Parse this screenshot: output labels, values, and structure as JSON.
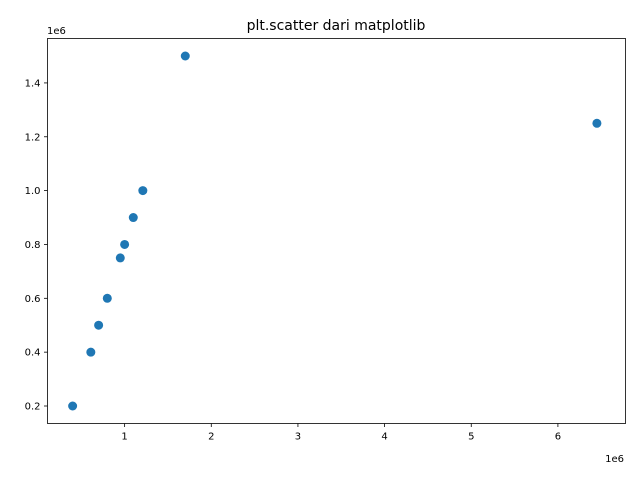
{
  "chart_data": {
    "type": "scatter",
    "title": "plt.scatter dari matplotlib",
    "xlabel": "",
    "ylabel": "",
    "x_offset_label": "1e6",
    "y_offset_label": "1e6",
    "xlim": [
      110000,
      6780000
    ],
    "ylim": [
      135000,
      1565000
    ],
    "x_ticks": [
      1000000,
      2000000,
      3000000,
      4000000,
      5000000,
      6000000
    ],
    "x_tick_labels": [
      "1",
      "2",
      "3",
      "4",
      "5",
      "6"
    ],
    "y_ticks": [
      200000,
      400000,
      600000,
      800000,
      1000000,
      1200000,
      1400000
    ],
    "y_tick_labels": [
      "0.2",
      "0.4",
      "0.6",
      "0.8",
      "1.0",
      "1.2",
      "1.4"
    ],
    "grid": false,
    "marker_color": "#1f77b4",
    "points": [
      {
        "x": 400000,
        "y": 200000
      },
      {
        "x": 610000,
        "y": 400000
      },
      {
        "x": 700000,
        "y": 500000
      },
      {
        "x": 800000,
        "y": 600000
      },
      {
        "x": 950000,
        "y": 750000
      },
      {
        "x": 1000000,
        "y": 800000
      },
      {
        "x": 1100000,
        "y": 900000
      },
      {
        "x": 1210000,
        "y": 1000000
      },
      {
        "x": 1700000,
        "y": 1500000
      },
      {
        "x": 6450000,
        "y": 1250000
      }
    ]
  }
}
